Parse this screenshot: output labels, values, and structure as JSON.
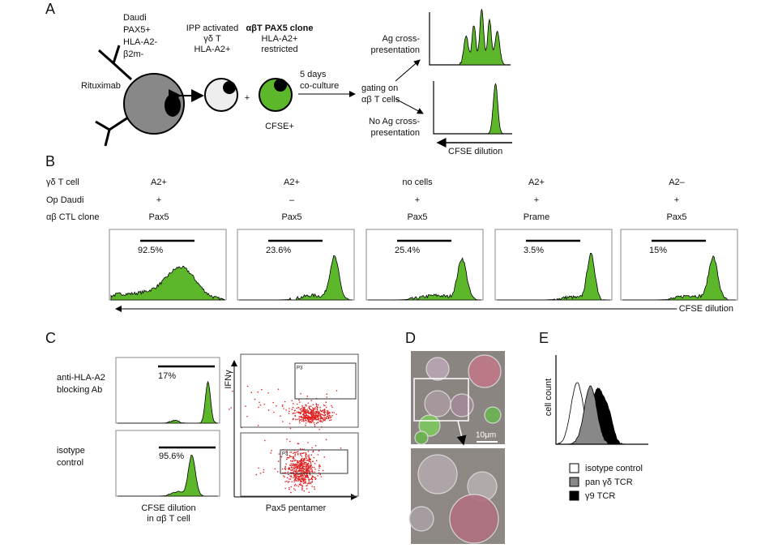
{
  "panel_a": {
    "label": "A",
    "daudi": [
      "Daudi",
      "PAX5+",
      "HLA-A2-",
      "β2m-"
    ],
    "antibody": "Rituximab",
    "gd_t": [
      "IPP activated",
      "γδ T",
      "HLA-A2+"
    ],
    "plus": "+",
    "ab_t": [
      "αβT PAX5 clone",
      "HLA-A2+",
      "restricted"
    ],
    "cfse": "CFSE+",
    "coculture": [
      "5 days",
      "co-culture"
    ],
    "gating": [
      "gating on",
      "αβ T cells"
    ],
    "ag": [
      "Ag cross-",
      "presentation"
    ],
    "no_ag": [
      "No Ag cross-",
      "presentation"
    ],
    "x_label": "CFSE dilution"
  },
  "panel_b": {
    "label": "B",
    "row_labels": [
      "γδ T cell",
      "Op Daudi",
      "αβ CTL clone"
    ],
    "columns": [
      {
        "gd_t_cell": "A2+",
        "op_daudi": "+",
        "ctl_clone": "Pax5",
        "percent": "92.5%"
      },
      {
        "gd_t_cell": "A2+",
        "op_daudi": "–",
        "ctl_clone": "Pax5",
        "percent": "23.6%"
      },
      {
        "gd_t_cell": "no cells",
        "op_daudi": "+",
        "ctl_clone": "Pax5",
        "percent": "25.4%"
      },
      {
        "gd_t_cell": "A2+",
        "op_daudi": "+",
        "ctl_clone": "Prame",
        "percent": "3.5%"
      },
      {
        "gd_t_cell": "A2–",
        "op_daudi": "+",
        "ctl_clone": "Pax5",
        "percent": "15%"
      }
    ],
    "x_label": "CFSE dilution"
  },
  "panel_c": {
    "label": "C",
    "conditions": [
      {
        "name": [
          "anti-HLA-A2",
          "blocking Ab"
        ],
        "percent": "17%"
      },
      {
        "name": [
          "isotype",
          "control"
        ],
        "percent": "95.6%"
      }
    ],
    "hist_x_label": [
      "CFSE dilution",
      "in αβ T cell"
    ],
    "y_label": "IFNγ",
    "x_label": "Pax5 pentamer",
    "gate": "P3"
  },
  "panel_d": {
    "label": "D",
    "scale_bar": "10μm"
  },
  "panel_e": {
    "label": "E",
    "y_label": "cell count",
    "legend": [
      "isotype control",
      "pan γδ TCR",
      "γ9 TCR"
    ]
  }
}
